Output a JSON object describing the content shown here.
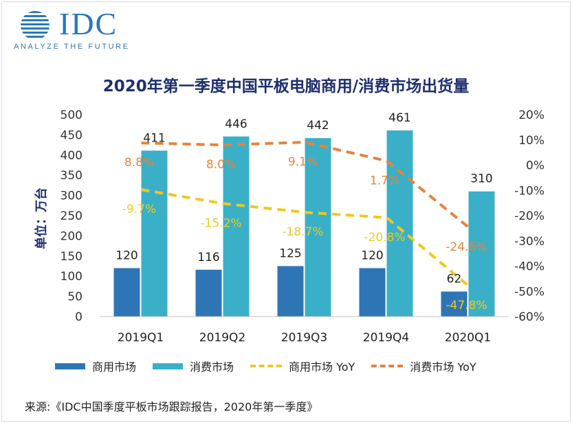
{
  "logo": {
    "wordmark": "IDC",
    "tagline": "ANALYZE THE FUTURE",
    "icon": "globe-lines-icon",
    "color": "#2a78b8"
  },
  "chart_title": "2020年第一季度中国平板电脑商用/消费市场出货量",
  "source": "来源:《IDC中国季度平板市场跟踪报告，2020年第一季度》",
  "chart_data": {
    "type": "bar",
    "title": "2020年第一季度中国平板电脑商用/消费市场出货量",
    "categories": [
      "2019Q1",
      "2019Q2",
      "2019Q3",
      "2019Q4",
      "2020Q1"
    ],
    "ylabel": "单位：万台",
    "ylim": [
      0,
      500
    ],
    "yticks": [
      0,
      50,
      100,
      150,
      200,
      250,
      300,
      350,
      400,
      450,
      500
    ],
    "y2lim": [
      -60,
      20
    ],
    "y2ticks": [
      "-60%",
      "-50%",
      "-40%",
      "-30%",
      "-20%",
      "-10%",
      "0%",
      "10%",
      "20%"
    ],
    "grid": false,
    "legend_position": "bottom",
    "series": [
      {
        "name": "商用市场",
        "type": "bar",
        "axis": "left",
        "color": "#2e75b6",
        "values": [
          120,
          116,
          125,
          120,
          62
        ],
        "labels": [
          "120",
          "116",
          "125",
          "120",
          "62"
        ]
      },
      {
        "name": "消费市场",
        "type": "bar",
        "axis": "left",
        "color": "#3ab0c8",
        "values": [
          411,
          446,
          442,
          461,
          310
        ],
        "labels": [
          "411",
          "446",
          "442",
          "461",
          "310"
        ]
      },
      {
        "name": "商用市场 YoY",
        "type": "line",
        "style": "dashed",
        "axis": "right",
        "color": "#f0c81e",
        "label_color": "#f0c81e",
        "values": [
          -9.7,
          -15.2,
          -18.7,
          -20.8,
          -47.8
        ],
        "labels": [
          "-9.7%",
          "-15.2%",
          "-18.7%",
          "-20.8%",
          "-47.8%"
        ]
      },
      {
        "name": "消费市场 YoY",
        "type": "line",
        "style": "dashed",
        "axis": "right",
        "color": "#e8823a",
        "label_color": "#e8823a",
        "values": [
          8.8,
          8.0,
          9.1,
          1.7,
          -24.6
        ],
        "labels": [
          "8.8%",
          "8.0%",
          "9.1%",
          "1.7%",
          "-24.6%"
        ]
      }
    ]
  }
}
